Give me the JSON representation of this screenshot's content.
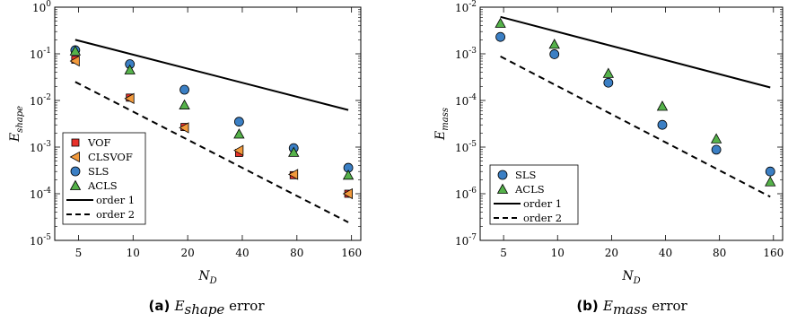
{
  "chart_data": [
    {
      "type": "scatter",
      "caption_tag": "(a)",
      "caption_main": "E",
      "caption_sub": "shape",
      "caption_suffix": " error",
      "ylabel_main": "E",
      "ylabel_sub": "shape",
      "xlabel_main": "N",
      "xlabel_sub": "D",
      "xscale": "log",
      "yscale": "log",
      "xlim": [
        3.7,
        180
      ],
      "ylim": [
        1e-05,
        1
      ],
      "xticks": [
        5,
        10,
        20,
        40,
        80,
        160
      ],
      "yticks": [
        1e-05,
        0.0001,
        0.001,
        0.01,
        0.1,
        1
      ],
      "legend_position": "lower-left",
      "series": [
        {
          "name": "VOF",
          "marker": "square",
          "color": "#e8312a",
          "x": [
            4.8,
            9.6,
            19.2,
            38.4,
            76.8,
            153.6
          ],
          "y": [
            0.075,
            0.0115,
            0.0027,
            0.00075,
            0.00025,
            0.0001
          ]
        },
        {
          "name": "CLSVOF",
          "marker": "triangle-left",
          "color": "#f29a3c",
          "x": [
            4.8,
            9.6,
            19.2,
            38.4,
            76.8,
            153.6
          ],
          "y": [
            0.07,
            0.011,
            0.0026,
            0.00085,
            0.00026,
            0.0001
          ]
        },
        {
          "name": "SLS",
          "marker": "circle",
          "color": "#3b7fc4",
          "x": [
            4.8,
            9.6,
            19.2,
            38.4,
            76.8,
            153.6
          ],
          "y": [
            0.12,
            0.06,
            0.017,
            0.0035,
            0.00095,
            0.00036
          ]
        },
        {
          "name": "ACLS",
          "marker": "triangle-up",
          "color": "#55b24a",
          "x": [
            4.8,
            9.6,
            19.2,
            38.4,
            76.8,
            153.6
          ],
          "y": [
            0.115,
            0.045,
            0.008,
            0.0019,
            0.00077,
            0.00025
          ]
        },
        {
          "name": "order 1",
          "style": "solid",
          "x": [
            4.8,
            153.6
          ],
          "y": [
            0.2,
            0.00625
          ]
        },
        {
          "name": "order 2",
          "style": "dashed",
          "x": [
            4.8,
            153.6
          ],
          "y": [
            0.025,
            2.44e-05
          ]
        }
      ]
    },
    {
      "type": "scatter",
      "caption_tag": "(b)",
      "caption_main": "E",
      "caption_sub": "mass",
      "caption_suffix": " error",
      "ylabel_main": "E",
      "ylabel_sub": "mass",
      "xlabel_main": "N",
      "xlabel_sub": "D",
      "xscale": "log",
      "yscale": "log",
      "xlim": [
        3.7,
        180
      ],
      "ylim": [
        1e-07,
        0.01
      ],
      "xticks": [
        5,
        10,
        20,
        40,
        80,
        160
      ],
      "yticks": [
        1e-07,
        1e-06,
        1e-05,
        0.0001,
        0.001,
        0.01
      ],
      "legend_position": "lower-left",
      "series": [
        {
          "name": "SLS",
          "marker": "circle",
          "color": "#3b7fc4",
          "x": [
            4.8,
            9.6,
            19.2,
            38.4,
            76.8,
            153.6
          ],
          "y": [
            0.0023,
            0.00098,
            0.00024,
            3e-05,
            8.8e-06,
            3e-06
          ]
        },
        {
          "name": "ACLS",
          "marker": "triangle-up",
          "color": "#55b24a",
          "x": [
            4.8,
            9.6,
            19.2,
            38.4,
            76.8,
            153.6
          ],
          "y": [
            0.0045,
            0.0016,
            0.00038,
            7.5e-05,
            1.5e-05,
            1.8e-06
          ]
        },
        {
          "name": "order 1",
          "style": "solid",
          "x": [
            4.8,
            153.6
          ],
          "y": [
            0.0062,
            0.00019
          ]
        },
        {
          "name": "order 2",
          "style": "dashed",
          "x": [
            4.8,
            153.6
          ],
          "y": [
            0.00088,
            8.6e-07
          ]
        }
      ]
    }
  ]
}
